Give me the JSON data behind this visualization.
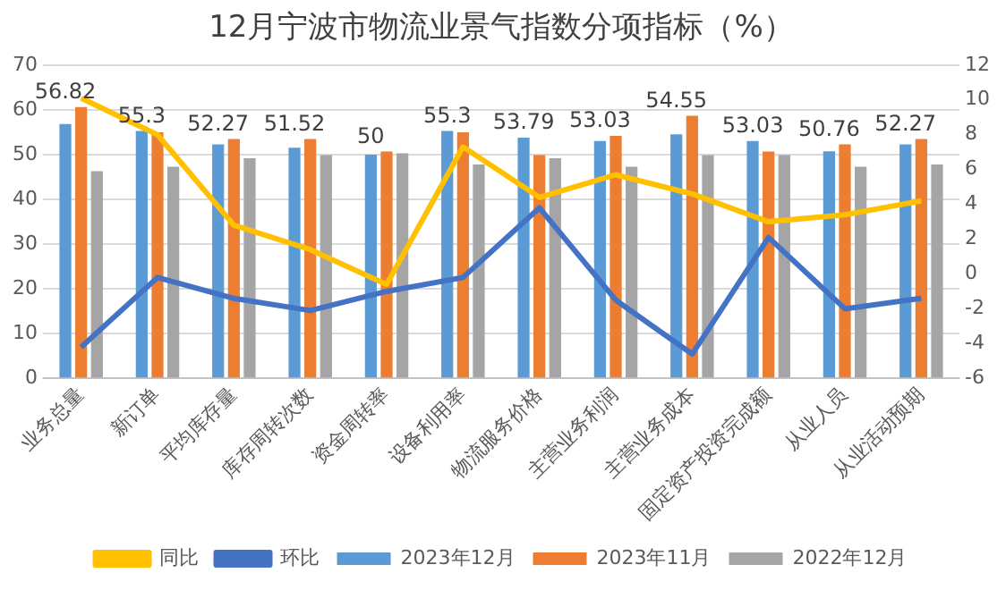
{
  "chart_data": {
    "type": "bar",
    "title": "12月宁波市物流业景气指数分项指标（%）",
    "categories": [
      "业务总量",
      "新订单",
      "平均库存量",
      "库存周转次数",
      "资金周转率",
      "设备利用率",
      "物流服务价格",
      "主营业务利润",
      "主营业务成本",
      "固定资产投资完成额",
      "从业人员",
      "从业活动预期"
    ],
    "series": [
      {
        "name": "2023年12月",
        "color": "#5b9bd5",
        "values": [
          56.82,
          55.3,
          52.27,
          51.52,
          50,
          55.3,
          53.79,
          53.03,
          54.55,
          53.03,
          50.76,
          52.27
        ],
        "value_labels": [
          "56.82",
          "55.3",
          "52.27",
          "51.52",
          "50",
          "55.3",
          "53.79",
          "53.03",
          "54.55",
          "53.03",
          "50.76",
          "52.27"
        ]
      },
      {
        "name": "2023年11月",
        "color": "#ed7d31",
        "values": [
          60.6,
          55,
          53.5,
          53.5,
          50.7,
          55,
          49.9,
          54.2,
          58.7,
          50.7,
          52.3,
          53.5
        ]
      },
      {
        "name": "2022年12月",
        "color": "#a5a5a5",
        "values": [
          46.3,
          47.3,
          49.2,
          49.9,
          50.3,
          47.8,
          49.2,
          47.3,
          49.9,
          49.9,
          47.3,
          47.8
        ]
      },
      {
        "name": "同比",
        "type": "line",
        "axis": "y2",
        "color": "#ffc000",
        "values": [
          10.1,
          8.0,
          2.8,
          1.4,
          -0.6,
          7.3,
          4.4,
          5.7,
          4.6,
          3.0,
          3.4,
          4.2
        ]
      },
      {
        "name": "环比",
        "type": "line",
        "axis": "y2",
        "color": "#4472c4",
        "values": [
          -4.2,
          -0.2,
          -1.4,
          -2.1,
          -1.0,
          -0.2,
          3.8,
          -1.5,
          -4.6,
          2.1,
          -2.0,
          -1.4
        ]
      }
    ],
    "ylim": [
      0,
      70
    ],
    "yticks": [
      0,
      10,
      20,
      30,
      40,
      50,
      60,
      70
    ],
    "y2lim": [
      -6,
      12
    ],
    "y2ticks": [
      -6,
      -4,
      -2,
      0,
      2,
      4,
      6,
      8,
      10,
      12
    ],
    "grid": "y",
    "legend": "bottom",
    "marker": "none"
  }
}
